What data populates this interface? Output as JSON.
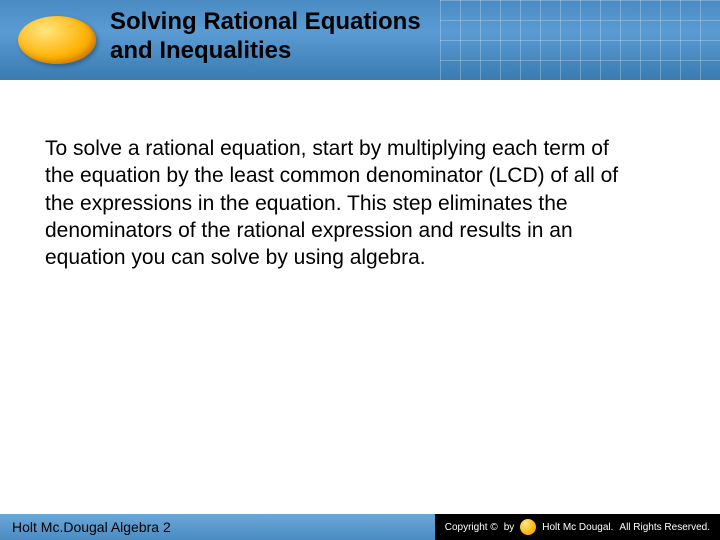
{
  "header": {
    "title_line1": "Solving Rational Equations",
    "title_line2": "and Inequalities",
    "band_gradient_top": "#4a8bc2",
    "band_gradient_bottom": "#3a7bb0",
    "logo_color_light": "#ffe680",
    "logo_color_dark": "#e89000",
    "title_color": "#000000",
    "title_fontsize": 24
  },
  "body": {
    "paragraph": "To solve a rational equation, start by multiplying each term of the equation by the least common denominator (LCD) of all of the expressions in the equation. This step eliminates the denominators of the rational expression and results in an equation you can solve by using algebra.",
    "fontsize": 21,
    "color": "#000000"
  },
  "footer": {
    "left_text": "Holt Mc.Dougal Algebra 2",
    "copyright_prefix": "Copyright ©",
    "copyright_by": "by",
    "copyright_brand": "Holt Mc Dougal.",
    "copyright_suffix": "All Rights Reserved.",
    "band_color": "#4a8bc2",
    "right_bg": "#000000",
    "right_color": "#ffffff"
  }
}
